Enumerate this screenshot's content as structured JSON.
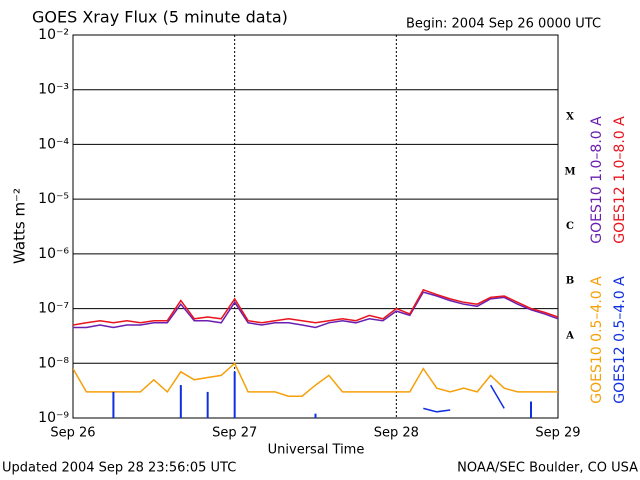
{
  "chart_data": {
    "type": "line",
    "title": "GOES Xray Flux (5 minute data)",
    "subtitle": "Begin:  2004 Sep 26 0000 UTC",
    "x_label": "Universal Time",
    "y_label": "Watts m⁻²",
    "footer_left": "Updated 2004 Sep 28 23:56:05 UTC",
    "footer_right": "NOAA/SEC Boulder, CO USA",
    "flare_classes": [
      "X",
      "M",
      "C",
      "B",
      "A"
    ],
    "log_scale": true,
    "grid": true,
    "xlim": [
      0,
      3
    ],
    "xticks": [
      {
        "value": 0,
        "label": "Sep 26"
      },
      {
        "value": 1,
        "label": "Sep 27"
      },
      {
        "value": 2,
        "label": "Sep 28"
      },
      {
        "value": 3,
        "label": "Sep 29"
      }
    ],
    "ylim": [
      1e-09,
      0.01
    ],
    "yticks": [
      {
        "value": 1e-09,
        "label": "10⁻⁹"
      },
      {
        "value": 1e-08,
        "label": "10⁻⁸"
      },
      {
        "value": 1e-07,
        "label": "10⁻⁷"
      },
      {
        "value": 1e-06,
        "label": "10⁻⁶"
      },
      {
        "value": 1e-05,
        "label": "10⁻⁵"
      },
      {
        "value": 0.0001,
        "label": "10⁻⁴"
      },
      {
        "value": 0.001,
        "label": "10⁻³"
      },
      {
        "value": 0.01,
        "label": "10⁻²"
      }
    ],
    "x": [
      0,
      0.083,
      0.167,
      0.25,
      0.333,
      0.417,
      0.5,
      0.583,
      0.667,
      0.75,
      0.833,
      0.917,
      1,
      1.083,
      1.167,
      1.25,
      1.333,
      1.417,
      1.5,
      1.583,
      1.667,
      1.75,
      1.833,
      1.917,
      2,
      2.083,
      2.167,
      2.25,
      2.333,
      2.417,
      2.5,
      2.583,
      2.667,
      2.75,
      2.833,
      2.917,
      3
    ],
    "series": [
      {
        "name": "GOES10 1.0–8.0 A",
        "color": "#6a1fb0",
        "values": [
          4.5e-08,
          4.5e-08,
          5e-08,
          4.5e-08,
          5e-08,
          5e-08,
          5.5e-08,
          5.5e-08,
          1.2e-07,
          6e-08,
          6e-08,
          5.5e-08,
          1.3e-07,
          5.5e-08,
          5e-08,
          5.5e-08,
          5.5e-08,
          5e-08,
          4.5e-08,
          5.5e-08,
          6e-08,
          5.5e-08,
          6.5e-08,
          6e-08,
          9e-08,
          7.5e-08,
          2e-07,
          1.7e-07,
          1.4e-07,
          1.2e-07,
          1.1e-07,
          1.5e-07,
          1.6e-07,
          1.2e-07,
          9.5e-08,
          8e-08,
          6.5e-08
        ]
      },
      {
        "name": "GOES12 1.0–8.0 A",
        "color": "#e8141e",
        "values": [
          5e-08,
          5.5e-08,
          6e-08,
          5.5e-08,
          6e-08,
          5.5e-08,
          6e-08,
          6e-08,
          1.4e-07,
          6.5e-08,
          7e-08,
          6.5e-08,
          1.5e-07,
          6e-08,
          5.5e-08,
          6e-08,
          6.5e-08,
          6e-08,
          5.5e-08,
          6e-08,
          6.5e-08,
          6e-08,
          7.5e-08,
          6.5e-08,
          1e-07,
          8e-08,
          2.2e-07,
          1.8e-07,
          1.5e-07,
          1.3e-07,
          1.2e-07,
          1.6e-07,
          1.7e-07,
          1.3e-07,
          1e-07,
          8.5e-08,
          7e-08
        ]
      },
      {
        "name": "GOES10 0.5–4.0 A",
        "color": "#f5a00a",
        "values": [
          8e-09,
          3e-09,
          3e-09,
          3e-09,
          3e-09,
          3e-09,
          5e-09,
          3e-09,
          7e-09,
          5e-09,
          5.5e-09,
          6e-09,
          1e-08,
          3e-09,
          3e-09,
          3e-09,
          2.5e-09,
          2.5e-09,
          4e-09,
          6e-09,
          3e-09,
          3e-09,
          3e-09,
          3e-09,
          3e-09,
          3e-09,
          8e-09,
          3.5e-09,
          3e-09,
          3.5e-09,
          3e-09,
          6e-09,
          3.5e-09,
          3e-09,
          3e-09,
          3e-09,
          3e-09
        ]
      },
      {
        "name": "GOES12 0.5–4.0 A",
        "color": "#1030e0",
        "values": [
          null,
          null,
          null,
          3e-09,
          null,
          null,
          null,
          null,
          4e-09,
          null,
          3e-09,
          null,
          7e-09,
          null,
          null,
          null,
          null,
          null,
          1.2e-09,
          null,
          null,
          null,
          null,
          null,
          null,
          null,
          1.5e-09,
          1.3e-09,
          1.4e-09,
          null,
          null,
          4e-09,
          1.5e-09,
          null,
          2e-09,
          null,
          null
        ]
      }
    ]
  }
}
